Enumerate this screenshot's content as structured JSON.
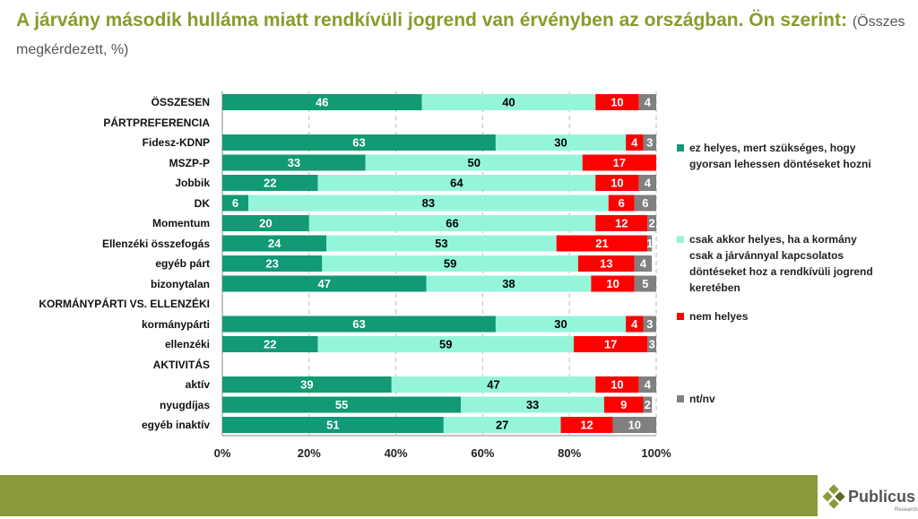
{
  "title": {
    "main": "A járvány második hulláma miatt rendkívüli jogrend van érvényben az országban. Ön szerint:",
    "sub": "(Összes megkérdezett, %)"
  },
  "chart_data": {
    "type": "bar",
    "orientation": "horizontal",
    "stacked": true,
    "categories": [
      "ÖSSZESEN",
      "PÁRTPREFERENCIA",
      "Fidesz-KDNP",
      "MSZP-P",
      "Jobbik",
      "DK",
      "Momentum",
      "Ellenzéki összefogás",
      "egyéb párt",
      "bizonytalan",
      "KORMÁNYPÁRTI VS. ELLENZÉKI",
      "kormánypárti",
      "ellenzéki",
      "AKTIVITÁS",
      "aktív",
      "nyugdíjas",
      "egyéb inaktív"
    ],
    "series": [
      {
        "name": "ez helyes, mert szükséges, hogy gyorsan lehessen döntéseket hozni",
        "color": "#119a74",
        "label_color": "#ffffff",
        "values": [
          46,
          null,
          63,
          33,
          22,
          6,
          20,
          24,
          23,
          47,
          null,
          63,
          22,
          null,
          39,
          55,
          51
        ]
      },
      {
        "name": "csak akkor helyes, ha a kormány csak a járvánnyal kapcsolatos döntéseket hoz a rendkívüli jogrend keretében",
        "color": "#95f5da",
        "label_color": "#000000",
        "values": [
          40,
          null,
          30,
          50,
          64,
          83,
          66,
          53,
          59,
          38,
          null,
          30,
          59,
          null,
          47,
          33,
          27
        ]
      },
      {
        "name": "nem helyes",
        "color": "#ff0000",
        "label_color": "#ffffff",
        "values": [
          10,
          null,
          4,
          17,
          10,
          6,
          12,
          21,
          13,
          10,
          null,
          4,
          17,
          null,
          10,
          9,
          12
        ]
      },
      {
        "name": "nt/nv",
        "color": "#808080",
        "label_color": "#ffffff",
        "values": [
          4,
          null,
          3,
          null,
          4,
          6,
          2,
          1,
          4,
          5,
          null,
          3,
          3,
          null,
          4,
          2,
          10
        ]
      }
    ],
    "xlim": [
      0,
      100
    ],
    "xticks": [
      "0%",
      "20%",
      "40%",
      "60%",
      "80%",
      "100%"
    ],
    "grid": true,
    "legend_position": "right"
  },
  "brand": {
    "name": "Publicus",
    "tagline": "Research"
  }
}
